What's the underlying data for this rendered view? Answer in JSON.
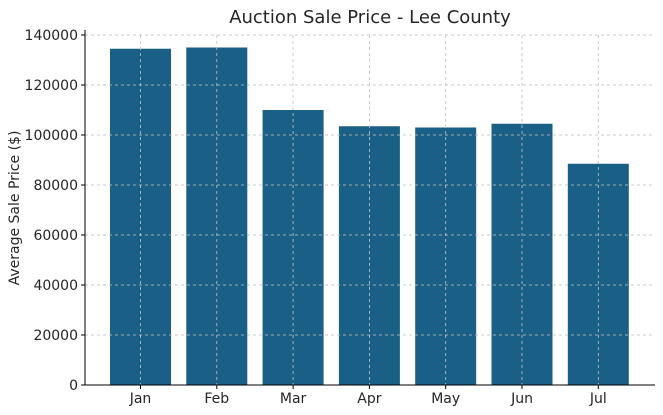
{
  "chart_data": {
    "type": "bar",
    "title": "Auction Sale Price - Lee County",
    "xlabel": "",
    "ylabel": "Average Sale Price ($)",
    "categories": [
      "Jan",
      "Feb",
      "Mar",
      "Apr",
      "May",
      "Jun",
      "Jul"
    ],
    "values": [
      134500,
      135000,
      110000,
      103500,
      103000,
      104500,
      88500
    ],
    "ylim": [
      0,
      140000
    ],
    "yticks": [
      "0",
      "20000",
      "40000",
      "60000",
      "80000",
      "100000",
      "120000",
      "140000"
    ],
    "grid": true,
    "colors": {
      "bar": "#1a5f86",
      "grid": "#c8c8c8",
      "axis": "#000000"
    }
  }
}
